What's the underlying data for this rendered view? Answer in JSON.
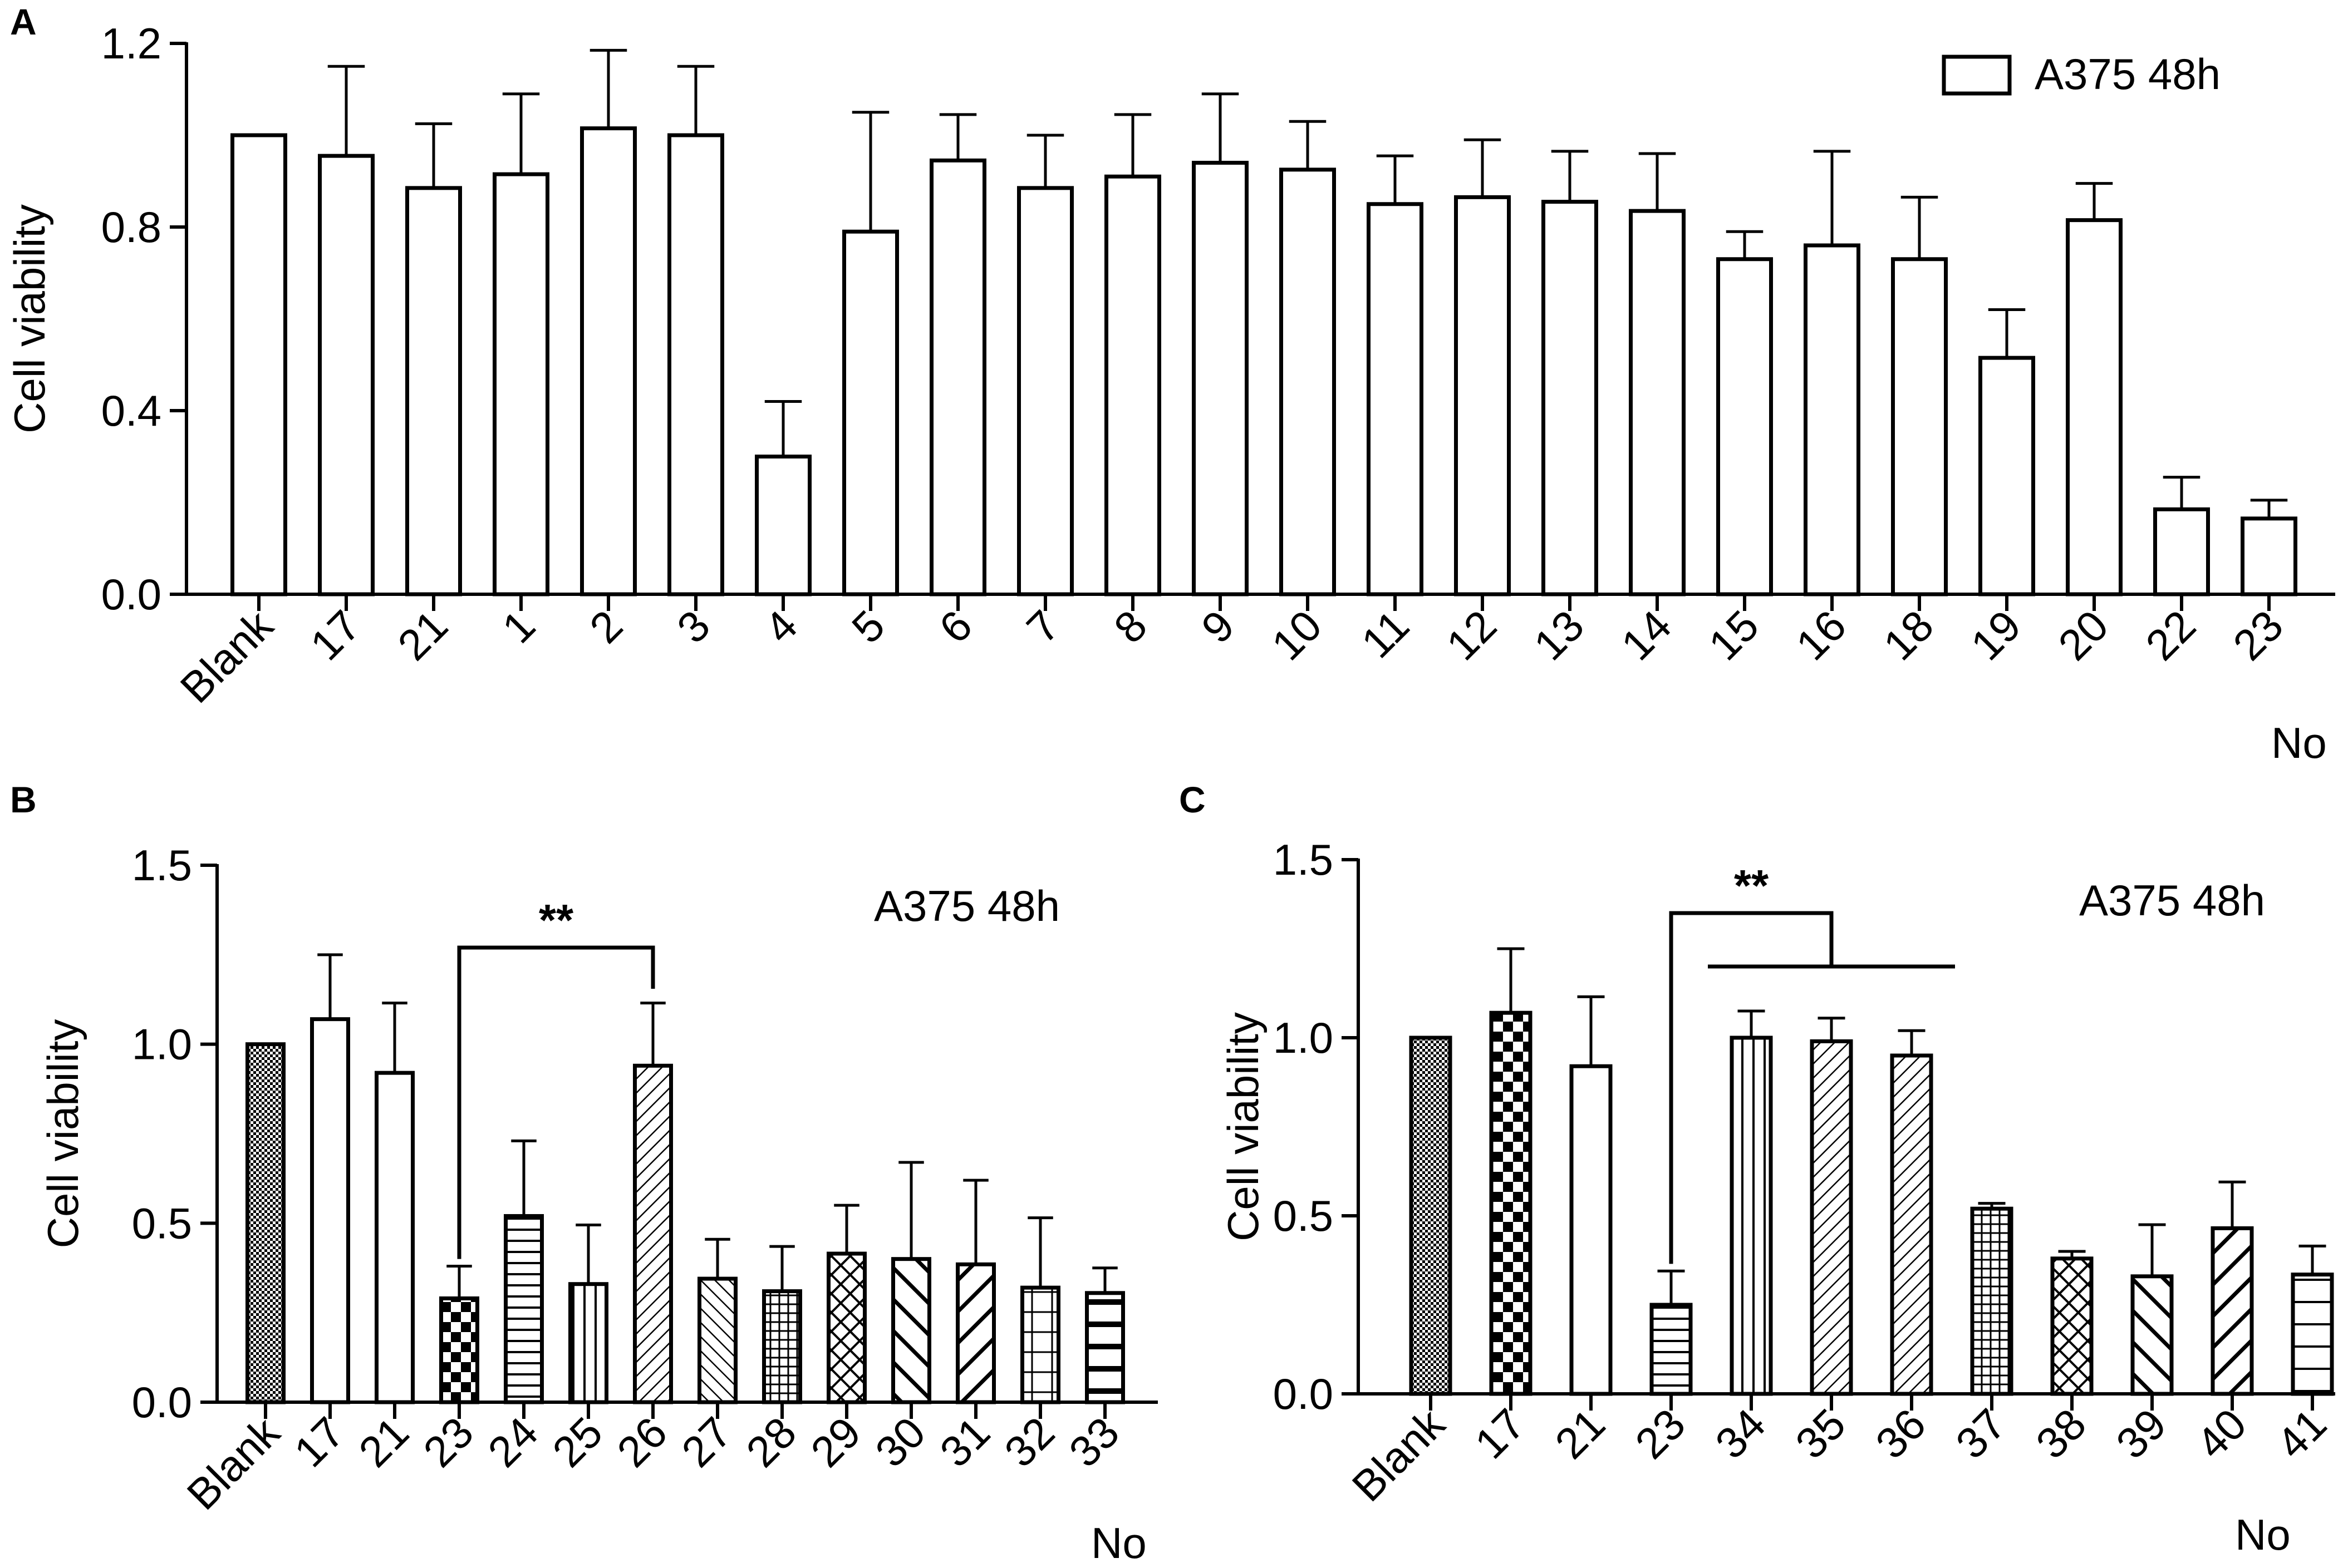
{
  "chart_data": [
    {
      "panel": "A",
      "type": "bar",
      "title": "",
      "xlabel": "No",
      "ylabel": "Cell viability",
      "ylim": [
        0,
        1.2
      ],
      "yticks": [
        "0.0",
        "0.4",
        "0.8",
        "1.2"
      ],
      "grid": false,
      "legend": {
        "label": "A375 48h",
        "placement": "top-right",
        "swatch": true
      },
      "categories": [
        "Blank",
        "17",
        "21",
        "1",
        "2",
        "3",
        "4",
        "5",
        "6",
        "7",
        "8",
        "9",
        "10",
        "11",
        "12",
        "13",
        "14",
        "15",
        "16",
        "18",
        "19",
        "20",
        "22",
        "23"
      ],
      "series": [
        {
          "name": "A375 48h",
          "values": [
            1.0,
            0.955,
            0.885,
            0.915,
            1.015,
            1.0,
            0.3,
            0.79,
            0.945,
            0.885,
            0.91,
            0.94,
            0.925,
            0.85,
            0.865,
            0.855,
            0.835,
            0.73,
            0.76,
            0.73,
            0.515,
            0.815,
            0.185,
            0.165
          ],
          "errors": [
            0,
            0.195,
            0.14,
            0.175,
            0.17,
            0.15,
            0.12,
            0.26,
            0.1,
            0.115,
            0.135,
            0.15,
            0.105,
            0.105,
            0.125,
            0.11,
            0.125,
            0.06,
            0.205,
            0.135,
            0.105,
            0.08,
            0.07,
            0.04
          ]
        }
      ],
      "patterns": [
        "none",
        "none",
        "none",
        "none",
        "none",
        "none",
        "none",
        "none",
        "none",
        "none",
        "none",
        "none",
        "none",
        "none",
        "none",
        "none",
        "none",
        "none",
        "none",
        "none",
        "none",
        "none",
        "none",
        "none"
      ]
    },
    {
      "panel": "B",
      "type": "bar",
      "title": "",
      "xlabel": "No",
      "ylabel": "Cell viability",
      "ylim": [
        0,
        1.5
      ],
      "yticks": [
        "0.0",
        "0.5",
        "1.0",
        "1.5"
      ],
      "grid": false,
      "legend": {
        "label": "A375 48h",
        "placement": "top-right",
        "swatch": false
      },
      "categories": [
        "Blank",
        "17",
        "21",
        "23",
        "24",
        "25",
        "26",
        "27",
        "28",
        "29",
        "30",
        "31",
        "32",
        "33"
      ],
      "series": [
        {
          "name": "A375 48h",
          "values": [
            1.0,
            1.07,
            0.92,
            0.29,
            0.52,
            0.33,
            0.94,
            0.345,
            0.31,
            0.415,
            0.4,
            0.385,
            0.32,
            0.305
          ],
          "errors": [
            0,
            0.18,
            0.195,
            0.09,
            0.21,
            0.165,
            0.175,
            0.11,
            0.125,
            0.135,
            0.27,
            0.235,
            0.195,
            0.07
          ]
        }
      ],
      "patterns": [
        "dots",
        "none",
        "none",
        "checker",
        "hlines",
        "vlines",
        "diag-fine",
        "diag-fine-rev",
        "grid",
        "diag-cross",
        "diag-bold-rev",
        "diag-bold",
        "hvlines-sparse",
        "hlines-bold"
      ],
      "significance": [
        {
          "from": "23",
          "to": "26",
          "label": "**"
        }
      ]
    },
    {
      "panel": "C",
      "type": "bar",
      "title": "",
      "xlabel": "No",
      "ylabel": "Cell viability",
      "ylim": [
        0,
        1.5
      ],
      "yticks": [
        "0.0",
        "0.5",
        "1.0",
        "1.5"
      ],
      "grid": false,
      "legend": {
        "label": "A375 48h",
        "placement": "top-right",
        "swatch": false
      },
      "categories": [
        "Blank",
        "17",
        "21",
        "23",
        "34",
        "35",
        "36",
        "37",
        "38",
        "39",
        "40",
        "41"
      ],
      "series": [
        {
          "name": "A375 48h",
          "values": [
            1.0,
            1.07,
            0.92,
            0.25,
            1.0,
            0.99,
            0.95,
            0.52,
            0.38,
            0.33,
            0.465,
            0.335
          ],
          "errors": [
            0,
            0.18,
            0.195,
            0.095,
            0.075,
            0.065,
            0.07,
            0.015,
            0.02,
            0.145,
            0.13,
            0.08
          ]
        }
      ],
      "patterns": [
        "dots",
        "checker",
        "none",
        "hlines",
        "vlines",
        "diag-fine",
        "diag-fine",
        "grid",
        "diag-cross",
        "diag-bold-rev",
        "diag-bold",
        "hlines-sparse"
      ],
      "significance": [
        {
          "from": "23",
          "to": [
            "34",
            "35",
            "36"
          ],
          "label": "**"
        }
      ]
    }
  ]
}
